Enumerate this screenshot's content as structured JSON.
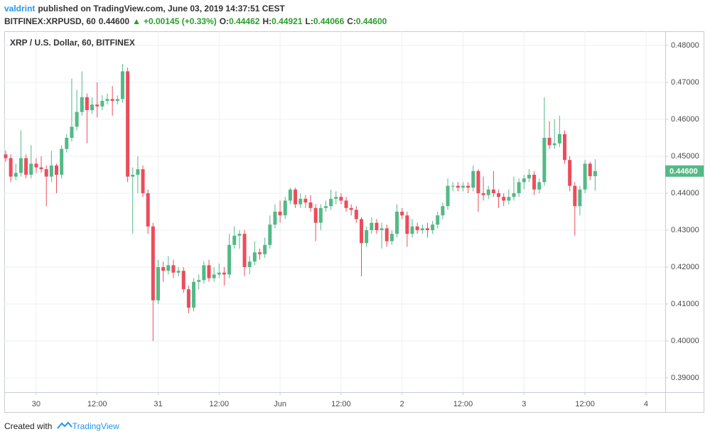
{
  "header": {
    "author": "valdrint",
    "published": "published on TradingView.com, June 03, 2019 14:37:51 CEST",
    "symbol": "BITFINEX:XRPUSD, 60",
    "last": "0.44600",
    "arrow": "▲",
    "change": "+0.00145 (+0.33%)",
    "ohlc": [
      {
        "label": "O:",
        "value": "0.44462"
      },
      {
        "label": "H:",
        "value": "0.44921"
      },
      {
        "label": "L:",
        "value": "0.44066"
      },
      {
        "label": "C:",
        "value": "0.44600"
      }
    ]
  },
  "footer": {
    "text": "Created with",
    "brand": "TradingView"
  },
  "chart_data": {
    "type": "candlestick",
    "title": "XRP / U.S. Dollar, 60, BITFINEX",
    "up_color": "#53b987",
    "down_color": "#eb4d5c",
    "grid": true,
    "last_price_label": "0.44600",
    "ylim": [
      0.38615,
      0.48385
    ],
    "yticks": [
      {
        "value": 0.39,
        "label": "0.39000"
      },
      {
        "value": 0.4,
        "label": "0.40000"
      },
      {
        "value": 0.41,
        "label": "0.41000"
      },
      {
        "value": 0.42,
        "label": "0.42000"
      },
      {
        "value": 0.43,
        "label": "0.43000"
      },
      {
        "value": 0.44,
        "label": "0.44000"
      },
      {
        "value": 0.45,
        "label": "0.45000"
      },
      {
        "value": 0.46,
        "label": "0.46000"
      },
      {
        "value": 0.47,
        "label": "0.47000"
      },
      {
        "value": 0.48,
        "label": "0.48000"
      }
    ],
    "categories": [
      null,
      null,
      null,
      null,
      null,
      null,
      "30",
      null,
      null,
      null,
      null,
      null,
      null,
      null,
      null,
      null,
      null,
      null,
      "12:00",
      null,
      null,
      null,
      null,
      null,
      null,
      null,
      null,
      null,
      null,
      null,
      "31",
      null,
      null,
      null,
      null,
      null,
      null,
      null,
      null,
      null,
      null,
      null,
      "12:00",
      null,
      null,
      null,
      null,
      null,
      null,
      null,
      null,
      null,
      null,
      null,
      "Jun",
      null,
      null,
      null,
      null,
      null,
      null,
      null,
      null,
      null,
      null,
      null,
      "12:00",
      null,
      null,
      null,
      null,
      null,
      null,
      null,
      null,
      null,
      null,
      null,
      "2",
      null,
      null,
      null,
      null,
      null,
      null,
      null,
      null,
      null,
      null,
      null,
      "12:00",
      null,
      null,
      null,
      null,
      null,
      null,
      null,
      null,
      null,
      null,
      null,
      "3",
      null,
      null,
      null,
      null,
      null,
      null,
      null,
      null,
      null,
      null,
      null,
      "12:00",
      null,
      null,
      null,
      null,
      null,
      null,
      null,
      null,
      null,
      null,
      null,
      "4",
      null,
      null,
      null,
      null
    ],
    "open": [
      0.4505,
      0.4495,
      0.4445,
      0.4455,
      0.4495,
      0.445,
      0.448,
      0.447,
      0.4465,
      0.4445,
      0.4475,
      0.445,
      0.452,
      0.455,
      0.458,
      0.462,
      0.466,
      0.4625,
      0.464,
      0.4635,
      0.465,
      0.4655,
      0.465,
      0.4655,
      0.473,
      0.4445,
      0.445,
      0.4465,
      0.44,
      0.431,
      0.411,
      0.42,
      0.419,
      0.4205,
      0.4185,
      0.419,
      0.414,
      0.409,
      0.416,
      0.4165,
      0.4205,
      0.417,
      0.418,
      0.4185,
      0.418,
      0.426,
      0.4285,
      0.429,
      0.42,
      0.4215,
      0.424,
      0.4235,
      0.426,
      0.4315,
      0.435,
      0.434,
      0.438,
      0.441,
      0.437,
      0.4385,
      0.4375,
      0.436,
      0.432,
      0.436,
      0.4365,
      0.4385,
      0.439,
      0.438,
      0.436,
      0.4355,
      0.433,
      0.4265,
      0.43,
      0.432,
      0.43,
      0.4305,
      0.427,
      0.429,
      0.435,
      0.434,
      0.429,
      0.431,
      0.43,
      0.4305,
      0.43,
      0.4315,
      0.434,
      0.4365,
      0.442,
      0.442,
      0.4415,
      0.442,
      0.4415,
      0.446,
      0.44,
      0.4395,
      0.441,
      0.44,
      0.439,
      0.438,
      0.439,
      0.44,
      0.443,
      0.444,
      0.445,
      0.441,
      0.443,
      0.455,
      0.453,
      0.4535,
      0.456,
      0.449,
      0.442,
      0.4365,
      0.441,
      0.448,
      0.44462,
      null,
      null,
      null,
      null,
      null,
      null,
      null,
      null,
      null,
      null,
      null,
      null,
      null,
      null
    ],
    "high": [
      0.4515,
      0.4505,
      0.448,
      0.457,
      0.4505,
      0.453,
      0.4495,
      0.45,
      0.4475,
      0.4515,
      0.448,
      0.453,
      0.456,
      0.471,
      0.468,
      0.473,
      0.467,
      0.466,
      0.47,
      0.4665,
      0.467,
      0.469,
      0.4665,
      0.475,
      0.474,
      0.447,
      0.45,
      0.4475,
      0.441,
      0.432,
      0.422,
      0.4215,
      0.423,
      0.422,
      0.42,
      0.42,
      0.415,
      0.417,
      0.418,
      0.4215,
      0.422,
      0.42,
      0.421,
      0.42,
      0.429,
      0.431,
      0.43,
      0.43,
      0.423,
      0.427,
      0.425,
      0.428,
      0.434,
      0.437,
      0.438,
      0.439,
      0.4415,
      0.4415,
      0.44,
      0.4395,
      0.4395,
      0.437,
      0.437,
      0.438,
      0.441,
      0.4405,
      0.44,
      0.439,
      0.437,
      0.4365,
      0.4335,
      0.431,
      0.4335,
      0.433,
      0.432,
      0.4315,
      0.43,
      0.437,
      0.436,
      0.435,
      0.433,
      0.432,
      0.4315,
      0.432,
      0.4325,
      0.435,
      0.4375,
      0.444,
      0.443,
      0.443,
      0.443,
      0.443,
      0.4475,
      0.4465,
      0.4445,
      0.442,
      0.446,
      0.441,
      0.44,
      0.441,
      0.4445,
      0.444,
      0.445,
      0.4465,
      0.446,
      0.444,
      0.466,
      0.4595,
      0.46,
      0.461,
      0.457,
      0.45,
      0.443,
      0.442,
      0.449,
      0.4485,
      0.44921,
      null,
      null,
      null,
      null,
      null,
      null,
      null,
      null,
      null,
      null,
      null,
      null,
      null,
      null
    ],
    "low": [
      0.4485,
      0.443,
      0.4435,
      0.4445,
      0.444,
      0.444,
      0.4455,
      0.4455,
      0.4365,
      0.443,
      0.44,
      0.444,
      0.451,
      0.454,
      0.457,
      0.461,
      0.4535,
      0.4615,
      0.4605,
      0.4625,
      0.464,
      0.461,
      0.464,
      0.4645,
      0.443,
      0.429,
      0.44,
      0.439,
      0.429,
      0.4,
      0.41,
      0.416,
      0.418,
      0.417,
      0.4175,
      0.413,
      0.4075,
      0.408,
      0.414,
      0.4155,
      0.416,
      0.416,
      0.417,
      0.415,
      0.417,
      0.425,
      0.425,
      0.4175,
      0.418,
      0.4205,
      0.422,
      0.4225,
      0.425,
      0.4305,
      0.432,
      0.433,
      0.437,
      0.436,
      0.436,
      0.436,
      0.435,
      0.427,
      0.43,
      0.435,
      0.4355,
      0.437,
      0.437,
      0.435,
      0.434,
      0.432,
      0.4175,
      0.4255,
      0.429,
      0.429,
      0.425,
      0.4255,
      0.426,
      0.428,
      0.433,
      0.4255,
      0.428,
      0.429,
      0.429,
      0.428,
      0.429,
      0.4305,
      0.433,
      0.4355,
      0.4405,
      0.4405,
      0.4405,
      0.44,
      0.4405,
      0.435,
      0.438,
      0.4385,
      0.439,
      0.436,
      0.4365,
      0.437,
      0.438,
      0.439,
      0.441,
      0.443,
      0.4395,
      0.44,
      0.442,
      0.452,
      0.452,
      0.4525,
      0.448,
      0.4405,
      0.4285,
      0.434,
      0.44,
      0.4435,
      0.44066,
      null,
      null,
      null,
      null,
      null,
      null,
      null,
      null,
      null,
      null,
      null,
      null,
      null,
      null
    ],
    "close": [
      0.4495,
      0.4445,
      0.4455,
      0.4495,
      0.445,
      0.448,
      0.447,
      0.4465,
      0.4445,
      0.4475,
      0.445,
      0.452,
      0.455,
      0.458,
      0.462,
      0.466,
      0.4625,
      0.464,
      0.4635,
      0.465,
      0.4655,
      0.465,
      0.4655,
      0.473,
      0.4445,
      0.445,
      0.4465,
      0.44,
      0.431,
      0.411,
      0.42,
      0.419,
      0.4205,
      0.4185,
      0.419,
      0.414,
      0.409,
      0.416,
      0.4165,
      0.4205,
      0.417,
      0.418,
      0.4185,
      0.418,
      0.426,
      0.4285,
      0.429,
      0.42,
      0.4215,
      0.424,
      0.4235,
      0.426,
      0.4315,
      0.435,
      0.434,
      0.438,
      0.441,
      0.437,
      0.4385,
      0.4375,
      0.436,
      0.432,
      0.436,
      0.4365,
      0.4385,
      0.439,
      0.438,
      0.436,
      0.4355,
      0.433,
      0.4265,
      0.43,
      0.432,
      0.43,
      0.4305,
      0.427,
      0.429,
      0.435,
      0.434,
      0.429,
      0.431,
      0.43,
      0.4305,
      0.43,
      0.4315,
      0.434,
      0.4365,
      0.442,
      0.442,
      0.4415,
      0.442,
      0.4415,
      0.446,
      0.44,
      0.4395,
      0.441,
      0.44,
      0.439,
      0.438,
      0.439,
      0.44,
      0.443,
      0.444,
      0.445,
      0.441,
      0.443,
      0.455,
      0.453,
      0.4535,
      0.456,
      0.449,
      0.442,
      0.4365,
      0.441,
      0.448,
      0.44462,
      0.446,
      null,
      null,
      null,
      null,
      null,
      null,
      null,
      null,
      null,
      null,
      null,
      null,
      null,
      null
    ]
  }
}
